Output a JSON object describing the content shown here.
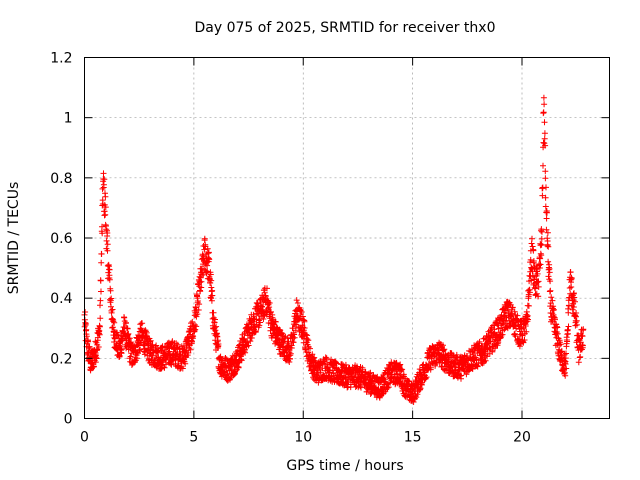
{
  "chart_data": {
    "type": "scatter",
    "title": "Day 075 of 2025, SRMTID for receiver thx0",
    "xlabel": "GPS time / hours",
    "ylabel": "SRMTID / TECUs",
    "xlim": [
      0,
      24
    ],
    "ylim": [
      0,
      1.2
    ],
    "xticks": [
      "0",
      "5",
      "10",
      "15",
      "20"
    ],
    "xtick_values": [
      0,
      5,
      10,
      15,
      20
    ],
    "yticks": [
      "0",
      "0.2",
      "0.4",
      "0.6",
      "0.8",
      "1",
      "1.2"
    ],
    "ytick_values": [
      0,
      0.2,
      0.4,
      0.6,
      0.8,
      1.0,
      1.2
    ],
    "grid": true,
    "marker": "+",
    "color": "#ff0000",
    "series": [
      {
        "name": "SRMTID",
        "profile_x": [
          0,
          0.1,
          0.3,
          0.5,
          0.7,
          0.85,
          0.95,
          1.05,
          1.3,
          1.6,
          1.8,
          2.2,
          2.6,
          3.0,
          3.5,
          4.0,
          4.5,
          5.0,
          5.3,
          5.5,
          5.7,
          5.9,
          6.2,
          6.6,
          7.0,
          7.3,
          7.7,
          8.1,
          8.3,
          8.6,
          9.0,
          9.4,
          9.7,
          10.0,
          10.3,
          10.6,
          11.0,
          11.5,
          12.0,
          12.5,
          13.0,
          13.5,
          14.0,
          14.4,
          14.7,
          15.0,
          15.4,
          15.8,
          16.2,
          16.7,
          17.2,
          17.7,
          18.2,
          18.6,
          19.0,
          19.3,
          19.6,
          19.9,
          20.2,
          20.45,
          20.6,
          20.75,
          20.9,
          21.0,
          21.1,
          21.3,
          21.5,
          21.8,
          22.0,
          22.2,
          22.4,
          22.6,
          22.8
        ],
        "profile_y": [
          0.33,
          0.25,
          0.18,
          0.22,
          0.3,
          0.78,
          0.7,
          0.55,
          0.3,
          0.22,
          0.3,
          0.2,
          0.28,
          0.22,
          0.2,
          0.22,
          0.2,
          0.3,
          0.45,
          0.55,
          0.5,
          0.32,
          0.18,
          0.16,
          0.2,
          0.25,
          0.32,
          0.36,
          0.4,
          0.3,
          0.25,
          0.22,
          0.35,
          0.3,
          0.2,
          0.15,
          0.17,
          0.15,
          0.14,
          0.14,
          0.12,
          0.1,
          0.15,
          0.15,
          0.1,
          0.08,
          0.14,
          0.2,
          0.22,
          0.18,
          0.17,
          0.2,
          0.22,
          0.26,
          0.3,
          0.35,
          0.33,
          0.28,
          0.3,
          0.55,
          0.45,
          0.45,
          0.6,
          1.05,
          0.7,
          0.38,
          0.3,
          0.2,
          0.17,
          0.46,
          0.36,
          0.22,
          0.28
        ],
        "spread": 0.05,
        "point_count": 2600
      }
    ]
  }
}
